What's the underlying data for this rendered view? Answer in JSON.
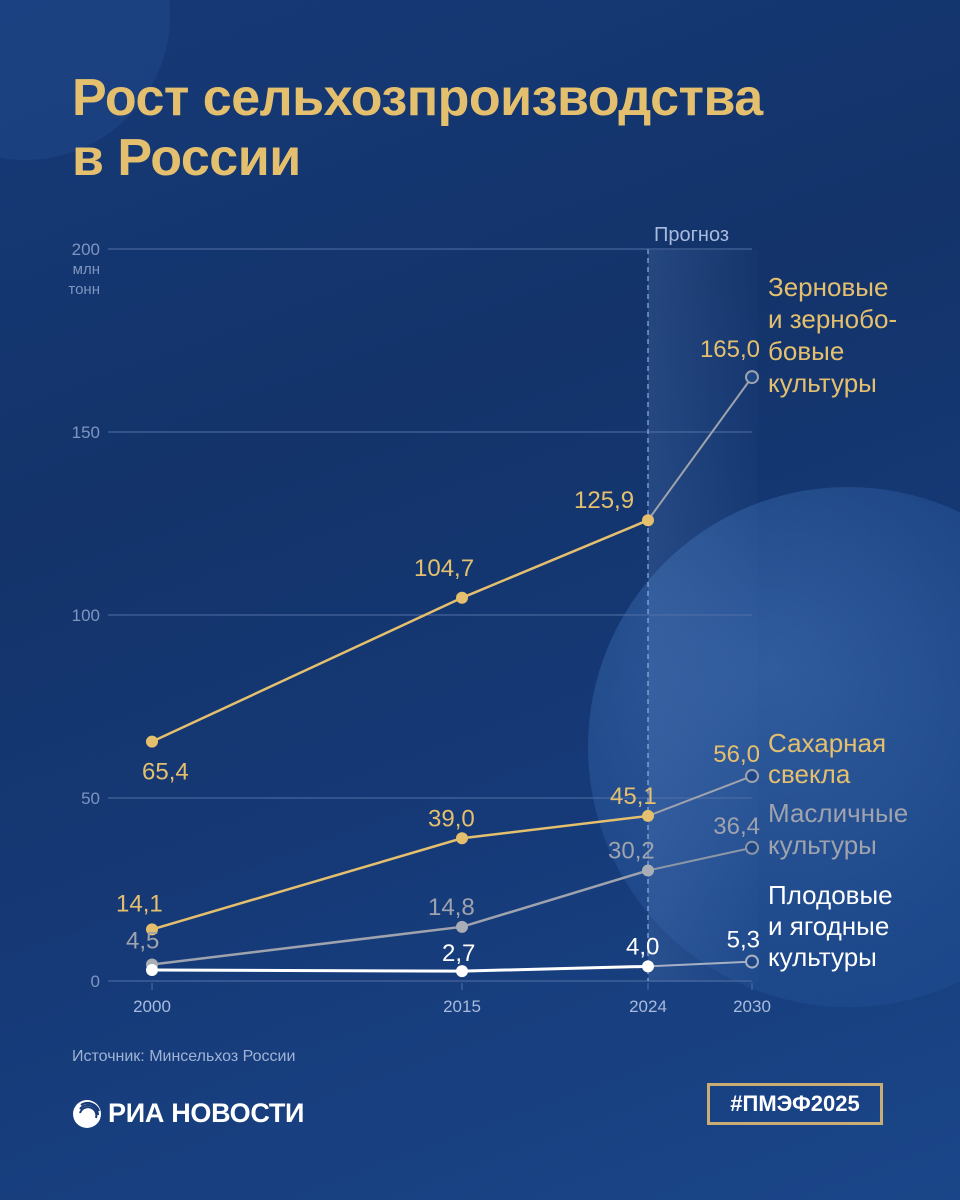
{
  "title": {
    "line1": "Рост сельхозпроизводства",
    "line2": "в России"
  },
  "colors": {
    "gold": "#e4c06e",
    "gray": "#9ea3ad",
    "white": "#ffffff",
    "axis_text": "#7f95bf",
    "grid": "#5370a6",
    "background": "#14346c"
  },
  "forecast_label": "Прогноз",
  "y_unit": [
    "млн",
    "тонн"
  ],
  "source": "Источник: Минсельхоз России",
  "logo_text": "РИА НОВОСТИ",
  "hashtag": "#ПМЭФ2025",
  "chart_data": {
    "type": "line",
    "title": "Рост сельхозпроизводства в России",
    "xlabel": "",
    "ylabel": "млн тонн",
    "x": [
      2000,
      2015,
      2024,
      2030
    ],
    "x_tick_labels": [
      "2000",
      "2015",
      "2024",
      "2030"
    ],
    "y_ticks": [
      0,
      50,
      100,
      150,
      200
    ],
    "ylim": [
      0,
      200
    ],
    "grid": true,
    "forecast_from": 2024,
    "forecast_label": "Прогноз",
    "series": [
      {
        "name": "Зерновые и зернобобовые культуры",
        "label_lines": [
          "Зерновые",
          "и зернобо-",
          "бовые",
          "культуры"
        ],
        "values": [
          65.4,
          104.7,
          125.9,
          165.0
        ],
        "value_labels": [
          "65,4",
          "104,7",
          "125,9",
          "165,0"
        ],
        "color": "#e4c06e"
      },
      {
        "name": "Сахарная свекла",
        "label_lines": [
          "Сахарная",
          "свекла"
        ],
        "values": [
          14.1,
          39.0,
          45.1,
          56.0
        ],
        "value_labels": [
          "14,1",
          "39,0",
          "45,1",
          "56,0"
        ],
        "color": "#e4c06e"
      },
      {
        "name": "Масличные культуры",
        "label_lines": [
          "Масличные",
          "культуры"
        ],
        "values": [
          4.5,
          14.8,
          30.2,
          36.4
        ],
        "value_labels": [
          "4,5",
          "14,8",
          "30,2",
          "36,4"
        ],
        "color": "#9ea3ad"
      },
      {
        "name": "Плодовые и ягодные культуры",
        "label_lines": [
          "Плодовые",
          "и ягодные",
          "культуры"
        ],
        "values": [
          3.0,
          2.7,
          4.0,
          5.3
        ],
        "value_labels": [
          "",
          "2,7",
          "4,0",
          "5,3"
        ],
        "color": "#ffffff"
      }
    ]
  }
}
